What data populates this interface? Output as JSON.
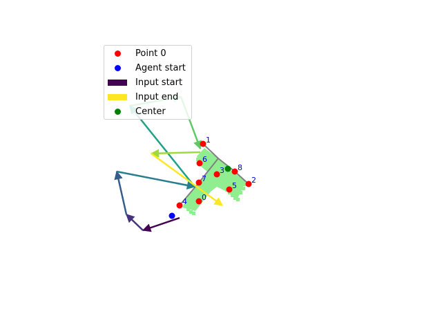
{
  "colors": {
    "point": "#ff0000",
    "agent": "#0000ff",
    "center": "#008000",
    "mask": "#90ee90",
    "outline": "#808080",
    "label": "#0000cc",
    "path_colormap": "viridis"
  },
  "legend": {
    "items": [
      {
        "label": "Point 0",
        "kind": "dot",
        "color": "#ff0000"
      },
      {
        "label": "Agent start",
        "kind": "dot",
        "color": "#0000ff"
      },
      {
        "label": "Input start",
        "kind": "bar",
        "color": "#440154"
      },
      {
        "label": "Input end",
        "kind": "bar",
        "color": "#fde725"
      },
      {
        "label": "Center",
        "kind": "dot",
        "color": "#008000"
      }
    ]
  },
  "points": [
    {
      "label": "0"
    },
    {
      "label": "1"
    },
    {
      "label": "2"
    },
    {
      "label": "3"
    },
    {
      "label": "4"
    },
    {
      "label": "5"
    },
    {
      "label": "6"
    },
    {
      "label": "7"
    },
    {
      "label": "8"
    }
  ],
  "markers": {
    "agent_start": "agent start",
    "center": "center"
  }
}
